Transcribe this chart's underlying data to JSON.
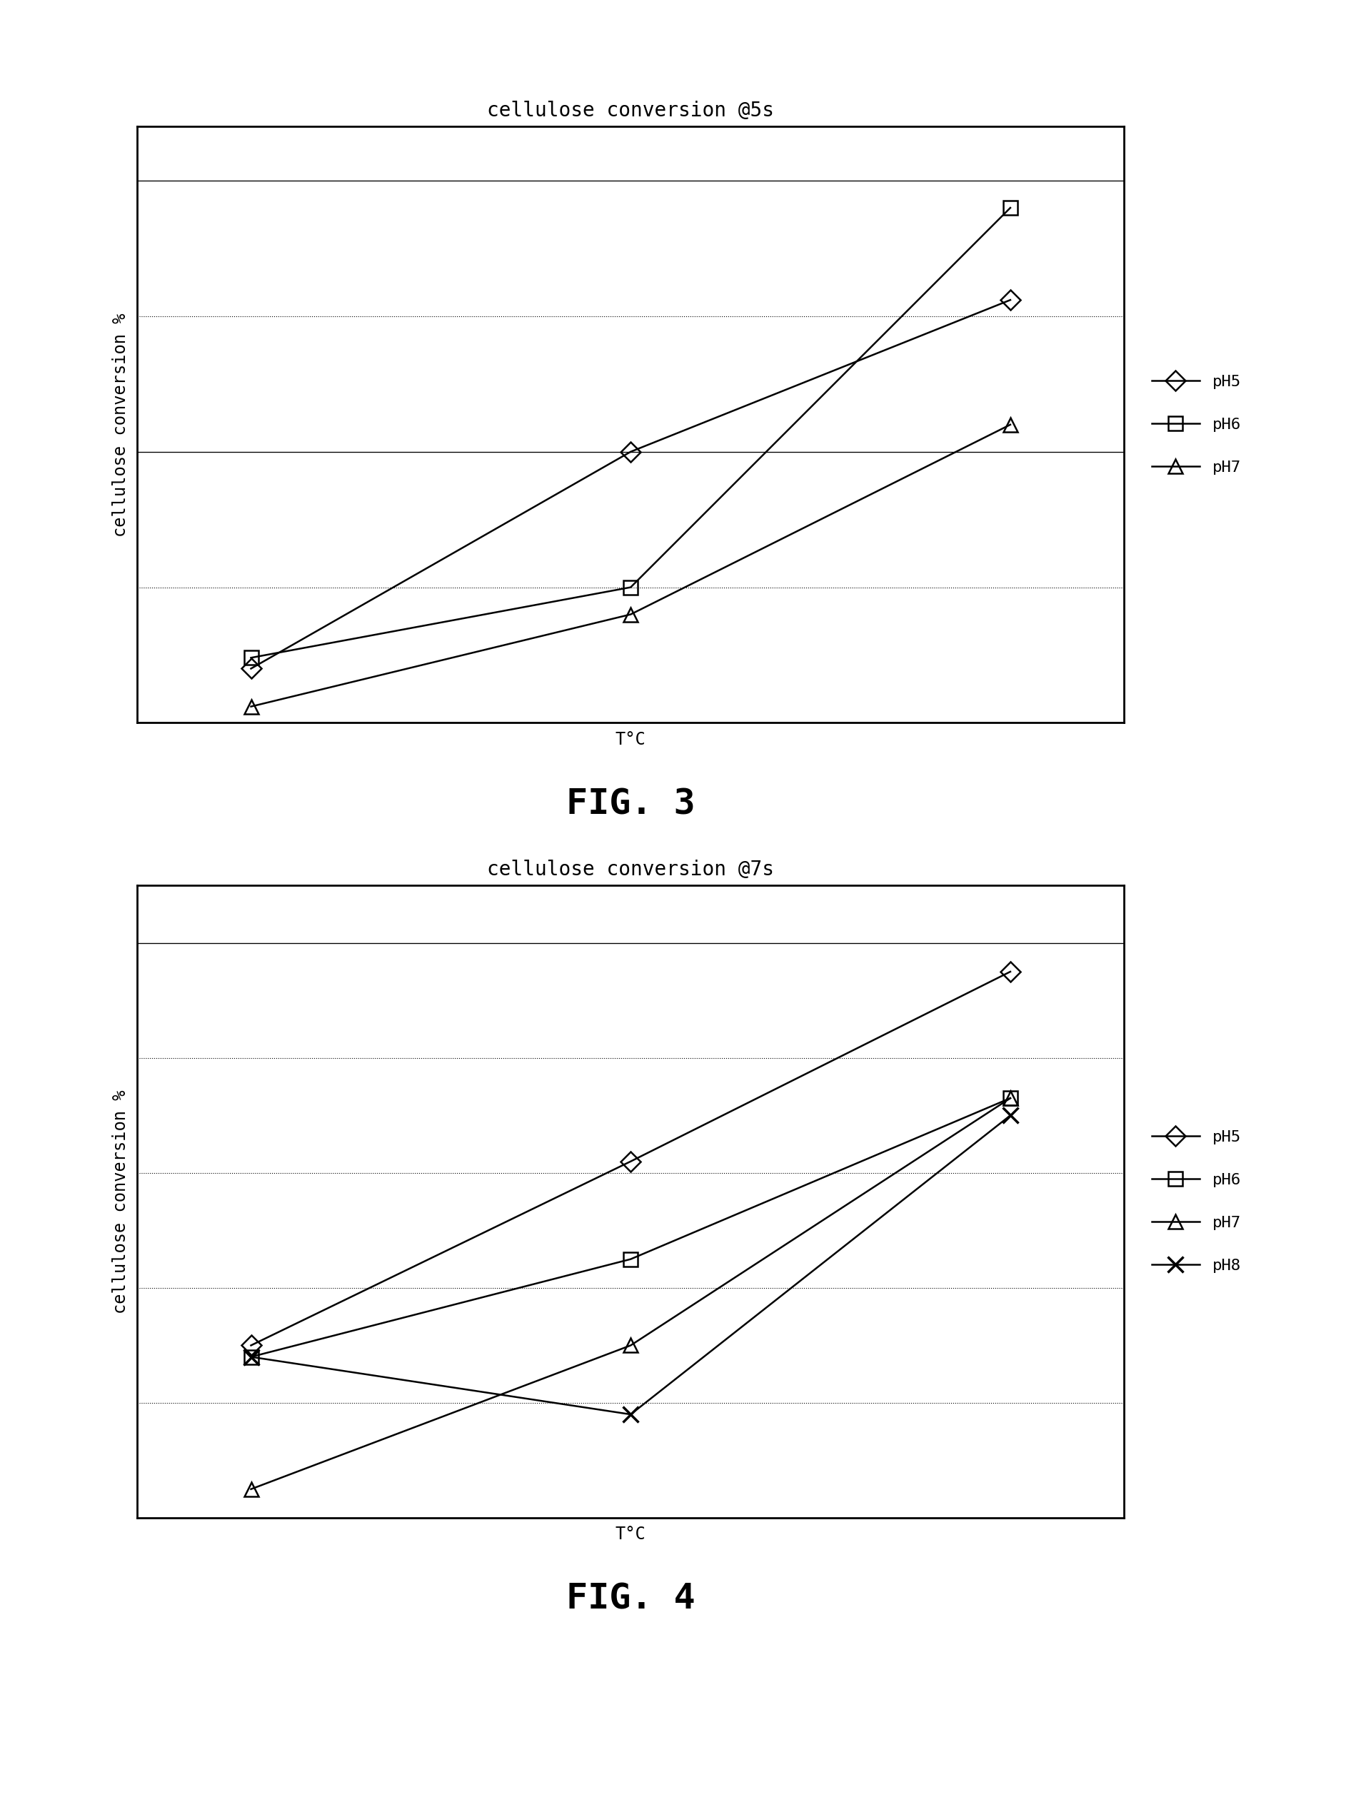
{
  "fig3": {
    "title": "cellulose conversion @5s",
    "xlabel": "T°C",
    "ylabel": "cellulose conversion %",
    "series": [
      {
        "x": [
          1,
          2,
          3
        ],
        "y": [
          10,
          50,
          78
        ],
        "marker": "D",
        "label": "pH5"
      },
      {
        "x": [
          1,
          2,
          3
        ],
        "y": [
          12,
          25,
          95
        ],
        "marker": "s",
        "label": "pH6"
      },
      {
        "x": [
          1,
          2,
          3
        ],
        "y": [
          3,
          20,
          55
        ],
        "marker": "^",
        "label": "pH7"
      }
    ],
    "ylim": [
      0,
      110
    ],
    "yticks": [
      0,
      25,
      50,
      75,
      100
    ],
    "fig_label": "FIG. 3"
  },
  "fig4": {
    "title": "cellulose conversion @7s",
    "xlabel": "T°C",
    "ylabel": "cellulose conversion %",
    "series": [
      {
        "x": [
          1,
          2,
          3
        ],
        "y": [
          30,
          62,
          95
        ],
        "marker": "D",
        "label": "pH5"
      },
      {
        "x": [
          1,
          2,
          3
        ],
        "y": [
          28,
          45,
          73
        ],
        "marker": "s",
        "label": "pH6"
      },
      {
        "x": [
          1,
          2,
          3
        ],
        "y": [
          5,
          30,
          73
        ],
        "marker": "^",
        "label": "pH7"
      },
      {
        "x": [
          1,
          2,
          3
        ],
        "y": [
          28,
          18,
          70
        ],
        "marker": "x",
        "label": "pH8"
      }
    ],
    "ylim": [
      0,
      110
    ],
    "yticks": [
      0,
      20,
      40,
      60,
      80,
      100
    ],
    "fig_label": "FIG. 4"
  },
  "background_color": "#ffffff",
  "title_fontsize": 20,
  "label_fontsize": 17,
  "legend_fontsize": 16,
  "figlabel_fontsize": 36,
  "marker_size": 14,
  "linewidth": 1.8,
  "grid_linewidth": 0.8,
  "spine_linewidth": 2.0
}
